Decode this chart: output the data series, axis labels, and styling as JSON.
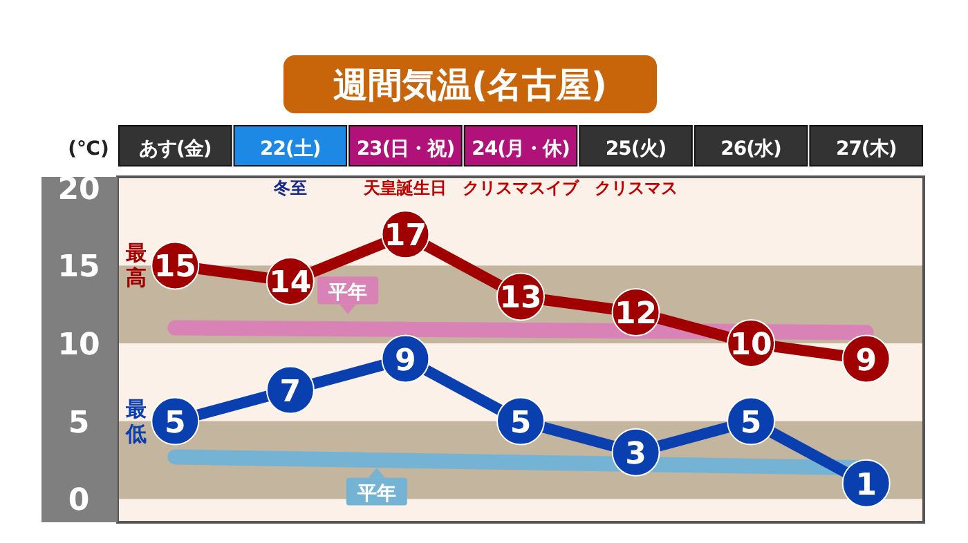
{
  "chart_data": {
    "type": "line",
    "title": "週間気温(名古屋)",
    "ylabel": "(℃)",
    "categories": [
      "あす(金)",
      "22(土)",
      "23(日・祝)",
      "24(月・休)",
      "25(火)",
      "26(水)",
      "27(木)"
    ],
    "series": [
      {
        "name": "平年",
        "color": "#d982b5",
        "values": [
          11.0,
          null,
          null,
          null,
          null,
          null,
          10.7
        ],
        "marker": "none"
      },
      {
        "name": "平年",
        "color": "#74b3d4",
        "values": [
          2.7,
          null,
          null,
          null,
          null,
          null,
          2.0
        ],
        "marker": "none"
      },
      {
        "name": "最高",
        "color": "#a00000",
        "values": [
          15,
          14,
          17,
          13,
          12,
          10,
          9
        ],
        "marker": "circle",
        "value_labels": [
          "15",
          "14",
          "17",
          "13",
          "12",
          "10",
          "9"
        ]
      },
      {
        "name": "最低",
        "color": "#0a3fb0",
        "values": [
          5,
          7,
          9,
          5,
          3,
          5,
          1
        ],
        "marker": "circle",
        "value_labels": [
          "5",
          "7",
          "9",
          "5",
          "3",
          "5",
          "1"
        ]
      }
    ],
    "annotations": [
      "冬至",
      "天皇誕生日",
      "クリスマスイブ",
      "クリスマス"
    ],
    "bands": [
      {
        "axis": "y",
        "from": 0,
        "to": 5,
        "color": "#c4b59f"
      },
      {
        "axis": "y",
        "from": 10,
        "to": 15,
        "color": "#c4b59f"
      }
    ],
    "ylim": [
      -1.5,
      20.7
    ],
    "yticks": [
      0,
      5,
      10,
      15,
      20
    ],
    "grid": false
  }
}
